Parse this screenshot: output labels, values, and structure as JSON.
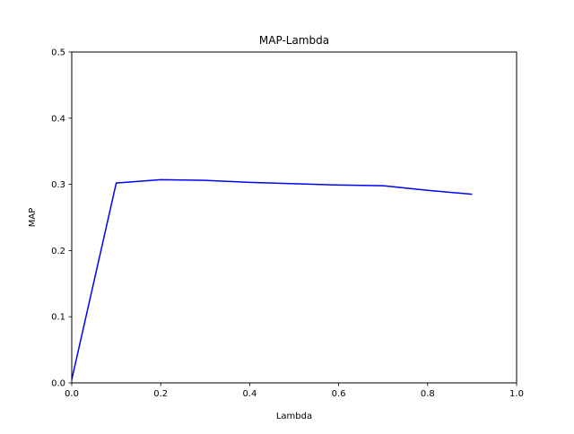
{
  "chart_data": {
    "type": "line",
    "title": "MAP-Lambda",
    "xlabel": "Lambda",
    "ylabel": "MAP",
    "xlim": [
      0.0,
      1.0
    ],
    "ylim": [
      0.0,
      0.5
    ],
    "xticks": [
      "0.0",
      "0.2",
      "0.4",
      "0.6",
      "0.8",
      "1.0"
    ],
    "yticks": [
      "0.0",
      "0.1",
      "0.2",
      "0.3",
      "0.4",
      "0.5"
    ],
    "grid": false,
    "series": [
      {
        "color": "#0000ff",
        "x": [
          0.0,
          0.1,
          0.2,
          0.3,
          0.4,
          0.5,
          0.6,
          0.7,
          0.8,
          0.9
        ],
        "y": [
          0.005,
          0.302,
          0.307,
          0.306,
          0.303,
          0.301,
          0.299,
          0.298,
          0.291,
          0.285
        ]
      }
    ]
  }
}
